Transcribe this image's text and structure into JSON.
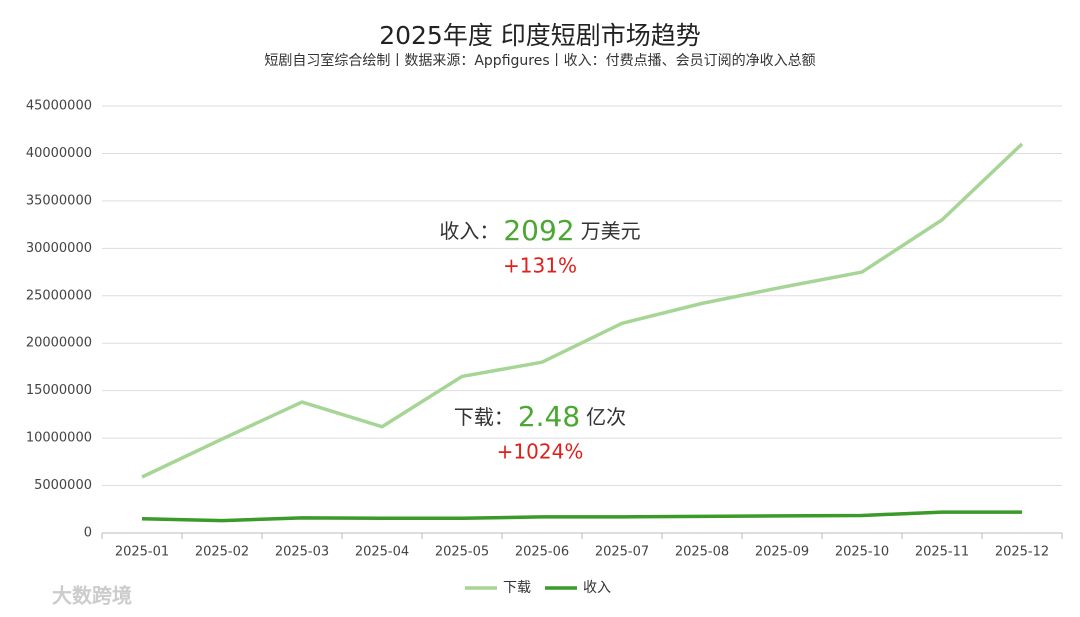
{
  "chart_data": {
    "type": "line",
    "title": "2025年度 印度短剧市场趋势",
    "subtitle": "短剧自习室综合绘制丨数据来源：Appfigures丨收入：付费点播、会员订阅的净收入总额",
    "categories": [
      "2025-01",
      "2025-02",
      "2025-03",
      "2025-04",
      "2025-05",
      "2025-06",
      "2025-07",
      "2025-08",
      "2025-09",
      "2025-10",
      "2025-11",
      "2025-12"
    ],
    "series": [
      {
        "name": "下载",
        "color": "#a6d596",
        "values": [
          5900000,
          9900000,
          13800000,
          11200000,
          16500000,
          18000000,
          22100000,
          24200000,
          25900000,
          27500000,
          33000000,
          41000000
        ]
      },
      {
        "name": "收入",
        "color": "#3a9a2a",
        "values": [
          1500000,
          1300000,
          1600000,
          1550000,
          1550000,
          1700000,
          1700000,
          1750000,
          1800000,
          1850000,
          2200000,
          2200000
        ]
      }
    ],
    "ylim": [
      0,
      45000000
    ],
    "yticks": [
      0,
      5000000,
      10000000,
      15000000,
      20000000,
      25000000,
      30000000,
      35000000,
      40000000,
      45000000
    ],
    "grid": true,
    "legend": "bottom",
    "annotations": [
      {
        "label": "收入：",
        "value": "2092",
        "unit": "万美元",
        "change": "+131%"
      },
      {
        "label": "下载：",
        "value": "2.48",
        "unit": "亿次",
        "change": "+1024%"
      }
    ],
    "watermark": "大数跨境"
  }
}
